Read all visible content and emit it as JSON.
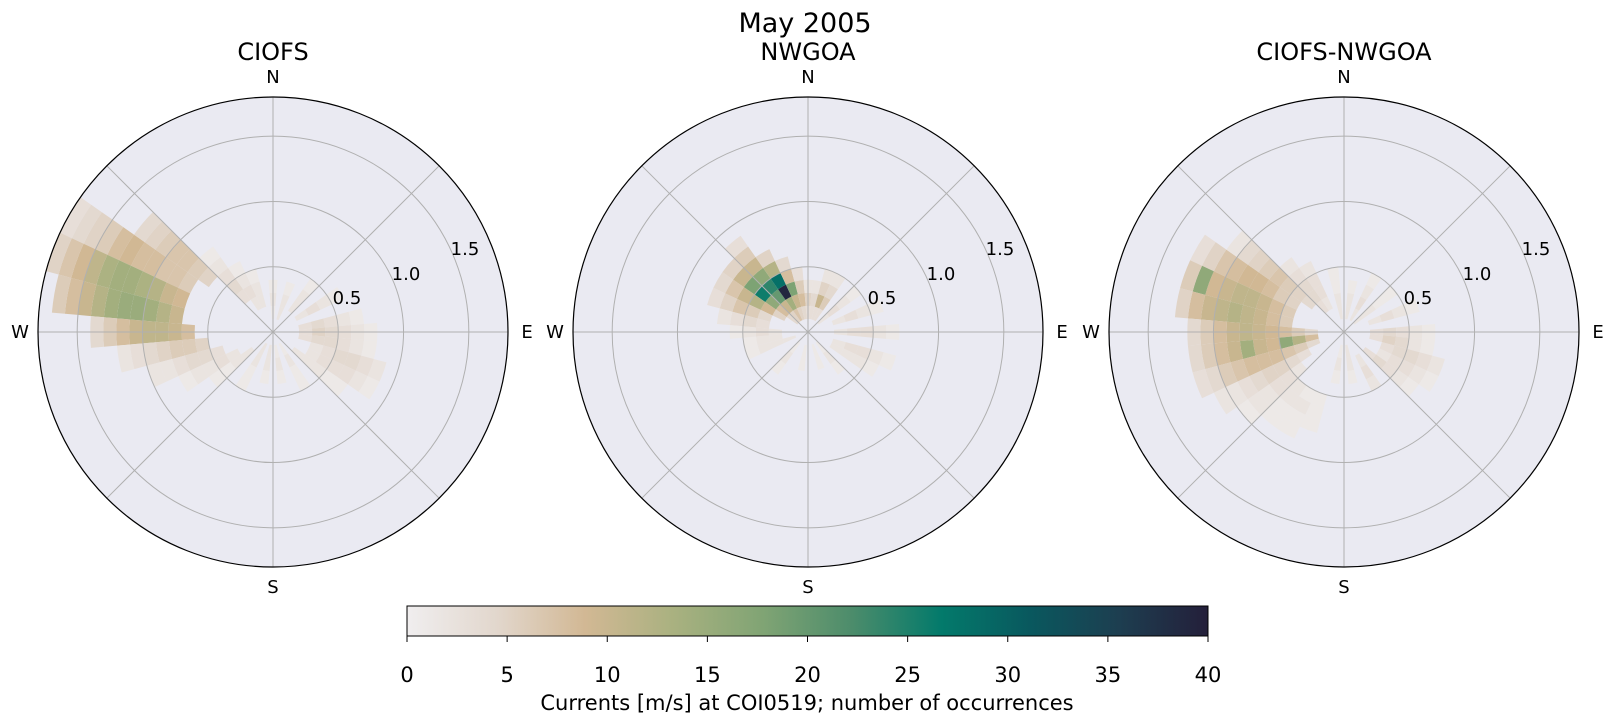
{
  "figure": {
    "suptitle": "May 2005",
    "colormap": [
      "#f0eeef",
      "#e2d7cd",
      "#d2b894",
      "#a9b180",
      "#80a474",
      "#4c8c6b",
      "#037a6b",
      "#09585e",
      "#1d3e50",
      "#241f3a"
    ],
    "background": "#eaeaf2"
  },
  "directions": {
    "n": "N",
    "e": "E",
    "s": "S",
    "w": "W"
  },
  "radial_ticks": [
    "0.5",
    "1.0",
    "1.5"
  ],
  "colorbar": {
    "label": "Currents [m/s] at COI0519; number of occurrences",
    "range": [
      0,
      40
    ],
    "ticks": [
      "0",
      "5",
      "10",
      "15",
      "20",
      "25",
      "30",
      "35",
      "40"
    ]
  },
  "chart_data": [
    {
      "type": "heatmap",
      "projection": "polar",
      "title": "CIOFS",
      "theta_zero": "N",
      "theta_direction": "clockwise",
      "rlim": [
        0,
        1.8
      ],
      "rticks": [
        0.5,
        1.0,
        1.5
      ],
      "theta_bin_deg": 10,
      "r_bin": 0.1,
      "cells": [
        {
          "dir": 300,
          "r": [
            0.7,
            1.8
          ],
          "values": [
            6,
            7,
            7,
            8,
            8,
            9,
            8,
            6,
            5,
            4,
            3
          ]
        },
        {
          "dir": 290,
          "r": [
            0.7,
            1.8
          ],
          "values": [
            9,
            10,
            12,
            13,
            14,
            14,
            13,
            11,
            9,
            7,
            5
          ]
        },
        {
          "dir": 280,
          "r": [
            0.7,
            1.7
          ],
          "values": [
            10,
            12,
            14,
            15,
            15,
            14,
            12,
            10,
            8,
            6
          ]
        },
        {
          "dir": 270,
          "r": [
            0.6,
            1.4
          ],
          "values": [
            8,
            10,
            11,
            11,
            10,
            8,
            6,
            4
          ]
        },
        {
          "dir": 310,
          "r": [
            0.6,
            1.3
          ],
          "values": [
            5,
            6,
            7,
            7,
            6,
            5,
            4
          ]
        },
        {
          "dir": 260,
          "r": [
            0.5,
            1.2
          ],
          "values": [
            5,
            6,
            6,
            5,
            4,
            3,
            2
          ]
        },
        {
          "dir": 250,
          "r": [
            0.4,
            1.0
          ],
          "values": [
            3,
            4,
            4,
            3,
            2,
            2
          ]
        },
        {
          "dir": 240,
          "r": [
            0.3,
            0.8
          ],
          "values": [
            2,
            3,
            2,
            2,
            1
          ]
        },
        {
          "dir": 230,
          "r": [
            0.2,
            0.6
          ],
          "values": [
            2,
            2,
            1,
            1
          ]
        },
        {
          "dir": 320,
          "r": [
            0.3,
            0.8
          ],
          "values": [
            3,
            4,
            3,
            2,
            1
          ]
        },
        {
          "dir": 330,
          "r": [
            0.2,
            0.6
          ],
          "values": [
            2,
            3,
            2,
            1
          ]
        },
        {
          "dir": 340,
          "r": [
            0.2,
            0.5
          ],
          "values": [
            2,
            2,
            1
          ]
        },
        {
          "dir": 0,
          "r": [
            0.1,
            0.4
          ],
          "values": [
            1,
            2,
            1
          ]
        },
        {
          "dir": 20,
          "r": [
            0.1,
            0.4
          ],
          "values": [
            2,
            2,
            1
          ]
        },
        {
          "dir": 40,
          "r": [
            0.2,
            0.5
          ],
          "values": [
            2,
            2,
            1
          ]
        },
        {
          "dir": 60,
          "r": [
            0.2,
            0.6
          ],
          "values": [
            2,
            3,
            2,
            1
          ]
        },
        {
          "dir": 80,
          "r": [
            0.2,
            0.7
          ],
          "values": [
            3,
            4,
            3,
            2,
            1
          ]
        },
        {
          "dir": 90,
          "r": [
            0.2,
            0.8
          ],
          "values": [
            3,
            5,
            4,
            3,
            2,
            1
          ]
        },
        {
          "dir": 100,
          "r": [
            0.2,
            0.8
          ],
          "values": [
            3,
            4,
            4,
            3,
            2,
            1
          ]
        },
        {
          "dir": 110,
          "r": [
            0.3,
            0.9
          ],
          "values": [
            2,
            3,
            4,
            4,
            3,
            2
          ]
        },
        {
          "dir": 120,
          "r": [
            0.3,
            0.9
          ],
          "values": [
            2,
            3,
            3,
            3,
            2,
            1
          ]
        },
        {
          "dir": 130,
          "r": [
            0.2,
            0.7
          ],
          "values": [
            2,
            2,
            2,
            1,
            1
          ]
        },
        {
          "dir": 150,
          "r": [
            0.1,
            0.5
          ],
          "values": [
            1,
            2,
            1,
            1
          ]
        },
        {
          "dir": 170,
          "r": [
            0.1,
            0.4
          ],
          "values": [
            1,
            2,
            1
          ]
        },
        {
          "dir": 190,
          "r": [
            0.1,
            0.4
          ],
          "values": [
            2,
            2,
            1
          ]
        },
        {
          "dir": 210,
          "r": [
            0.1,
            0.5
          ],
          "values": [
            2,
            2,
            1,
            1
          ]
        }
      ]
    },
    {
      "type": "heatmap",
      "projection": "polar",
      "title": "NWGOA",
      "theta_zero": "N",
      "theta_direction": "clockwise",
      "rlim": [
        0,
        1.8
      ],
      "rticks": [
        0.5,
        1.0,
        1.5
      ],
      "theta_bin_deg": 10,
      "r_bin": 0.1,
      "cells": [
        {
          "dir": 320,
          "r": [
            0.1,
            0.9
          ],
          "values": [
            5,
            10,
            20,
            24,
            16,
            10,
            6,
            3
          ]
        },
        {
          "dir": 310,
          "r": [
            0.1,
            0.8
          ],
          "values": [
            4,
            8,
            16,
            26,
            18,
            10,
            5
          ]
        },
        {
          "dir": 330,
          "r": [
            0.1,
            0.7
          ],
          "values": [
            7,
            14,
            39,
            28,
            12,
            5
          ]
        },
        {
          "dir": 300,
          "r": [
            0.2,
            0.8
          ],
          "values": [
            5,
            9,
            12,
            10,
            7,
            4
          ]
        },
        {
          "dir": 340,
          "r": [
            0.1,
            0.6
          ],
          "values": [
            5,
            10,
            18,
            8,
            4
          ]
        },
        {
          "dir": 290,
          "r": [
            0.3,
            0.8
          ],
          "values": [
            4,
            6,
            7,
            5,
            3
          ]
        },
        {
          "dir": 350,
          "r": [
            0.1,
            0.5
          ],
          "values": [
            4,
            8,
            6,
            3
          ]
        },
        {
          "dir": 280,
          "r": [
            0.3,
            0.7
          ],
          "values": [
            3,
            4,
            3,
            2
          ]
        },
        {
          "dir": 0,
          "r": [
            0.1,
            0.4
          ],
          "values": [
            3,
            5,
            2
          ]
        },
        {
          "dir": 10,
          "r": [
            0.1,
            0.4
          ],
          "values": [
            3,
            4,
            2
          ]
        },
        {
          "dir": 20,
          "r": [
            0.1,
            0.5
          ],
          "values": [
            3,
            10,
            5,
            2
          ]
        },
        {
          "dir": 30,
          "r": [
            0.1,
            0.5
          ],
          "values": [
            3,
            6,
            4,
            2
          ]
        },
        {
          "dir": 50,
          "r": [
            0.1,
            0.5
          ],
          "values": [
            2,
            3,
            2,
            1
          ]
        },
        {
          "dir": 70,
          "r": [
            0.2,
            0.6
          ],
          "values": [
            2,
            3,
            2,
            1
          ]
        },
        {
          "dir": 90,
          "r": [
            0.2,
            0.7
          ],
          "values": [
            2,
            3,
            3,
            2,
            1
          ]
        },
        {
          "dir": 110,
          "r": [
            0.2,
            0.7
          ],
          "values": [
            2,
            3,
            3,
            2,
            1
          ]
        },
        {
          "dir": 120,
          "r": [
            0.2,
            0.6
          ],
          "values": [
            2,
            2,
            2,
            1
          ]
        },
        {
          "dir": 140,
          "r": [
            0.1,
            0.4
          ],
          "values": [
            1,
            2,
            1
          ]
        },
        {
          "dir": 160,
          "r": [
            0.1,
            0.3
          ],
          "values": [
            1,
            1
          ]
        },
        {
          "dir": 190,
          "r": [
            0.1,
            0.3
          ],
          "values": [
            1,
            1
          ]
        },
        {
          "dir": 220,
          "r": [
            0.1,
            0.4
          ],
          "values": [
            1,
            2,
            1
          ]
        },
        {
          "dir": 250,
          "r": [
            0.1,
            0.5
          ],
          "values": [
            2,
            2,
            2,
            1
          ]
        },
        {
          "dir": 260,
          "r": [
            0.2,
            0.5
          ],
          "values": [
            2,
            2,
            1
          ]
        },
        {
          "dir": 270,
          "r": [
            0.2,
            0.6
          ],
          "values": [
            2,
            3,
            2,
            1
          ]
        }
      ]
    },
    {
      "type": "heatmap",
      "projection": "polar",
      "title": "CIOFS-NWGOA",
      "theta_zero": "N",
      "theta_direction": "clockwise",
      "rlim": [
        0,
        1.8
      ],
      "rticks": [
        0.5,
        1.0,
        1.5
      ],
      "theta_bin_deg": 10,
      "r_bin": 0.1,
      "cells": [
        {
          "dir": 300,
          "r": [
            0.4,
            1.3
          ],
          "values": [
            5,
            6,
            8,
            9,
            9,
            8,
            7,
            5,
            3
          ]
        },
        {
          "dir": 290,
          "r": [
            0.4,
            1.3
          ],
          "values": [
            6,
            8,
            10,
            11,
            11,
            10,
            9,
            16,
            6
          ]
        },
        {
          "dir": 280,
          "r": [
            0.4,
            1.3
          ],
          "values": [
            6,
            8,
            10,
            11,
            12,
            11,
            10,
            8,
            5
          ]
        },
        {
          "dir": 270,
          "r": [
            0.2,
            1.2
          ],
          "values": [
            4,
            6,
            8,
            9,
            10,
            11,
            10,
            8,
            6,
            4
          ]
        },
        {
          "dir": 260,
          "r": [
            0.2,
            1.2
          ],
          "values": [
            8,
            12,
            16,
            9,
            10,
            14,
            10,
            8,
            6,
            4
          ]
        },
        {
          "dir": 250,
          "r": [
            0.2,
            1.2
          ],
          "values": [
            4,
            6,
            7,
            8,
            8,
            8,
            7,
            6,
            4,
            3
          ]
        },
        {
          "dir": 310,
          "r": [
            0.3,
            1.1
          ],
          "values": [
            4,
            5,
            6,
            7,
            6,
            5,
            4,
            2
          ]
        },
        {
          "dir": 240,
          "r": [
            0.3,
            1.1
          ],
          "values": [
            3,
            4,
            5,
            5,
            4,
            3,
            2,
            2
          ]
        },
        {
          "dir": 230,
          "r": [
            0.4,
            1.0
          ],
          "values": [
            2,
            3,
            3,
            2,
            2,
            1
          ]
        },
        {
          "dir": 220,
          "r": [
            0.5,
            0.9
          ],
          "values": [
            2,
            2,
            1,
            1
          ]
        },
        {
          "dir": 210,
          "r": [
            0.5,
            0.9
          ],
          "values": [
            1,
            2,
            1,
            1
          ]
        },
        {
          "dir": 200,
          "r": [
            0.5,
            0.8
          ],
          "values": [
            1,
            1,
            1
          ]
        },
        {
          "dir": 320,
          "r": [
            0.2,
            0.7
          ],
          "values": [
            3,
            4,
            4,
            3,
            2
          ]
        },
        {
          "dir": 330,
          "r": [
            0.2,
            0.6
          ],
          "values": [
            2,
            3,
            3,
            2
          ]
        },
        {
          "dir": 350,
          "r": [
            0.1,
            0.5
          ],
          "values": [
            2,
            2,
            1,
            1
          ]
        },
        {
          "dir": 10,
          "r": [
            0.1,
            0.4
          ],
          "values": [
            2,
            2,
            1
          ]
        },
        {
          "dir": 30,
          "r": [
            0.1,
            0.5
          ],
          "values": [
            2,
            3,
            2,
            1
          ]
        },
        {
          "dir": 50,
          "r": [
            0.1,
            0.5
          ],
          "values": [
            2,
            2,
            1,
            1
          ]
        },
        {
          "dir": 70,
          "r": [
            0.2,
            0.6
          ],
          "values": [
            2,
            3,
            2,
            1
          ]
        },
        {
          "dir": 90,
          "r": [
            0.2,
            0.7
          ],
          "values": [
            3,
            4,
            3,
            2,
            1
          ]
        },
        {
          "dir": 100,
          "r": [
            0.2,
            0.7
          ],
          "values": [
            3,
            5,
            4,
            2,
            1
          ]
        },
        {
          "dir": 110,
          "r": [
            0.3,
            0.8
          ],
          "values": [
            3,
            4,
            4,
            3,
            2
          ]
        },
        {
          "dir": 120,
          "r": [
            0.3,
            0.8
          ],
          "values": [
            2,
            3,
            3,
            2,
            1
          ]
        },
        {
          "dir": 130,
          "r": [
            0.2,
            0.7
          ],
          "values": [
            3,
            4,
            3,
            2,
            1
          ]
        },
        {
          "dir": 150,
          "r": [
            0.2,
            0.5
          ],
          "values": [
            2,
            3,
            2
          ]
        },
        {
          "dir": 170,
          "r": [
            0.1,
            0.4
          ],
          "values": [
            2,
            2,
            1
          ]
        },
        {
          "dir": 190,
          "r": [
            0.1,
            0.4
          ],
          "values": [
            1,
            2,
            1
          ]
        }
      ]
    }
  ]
}
